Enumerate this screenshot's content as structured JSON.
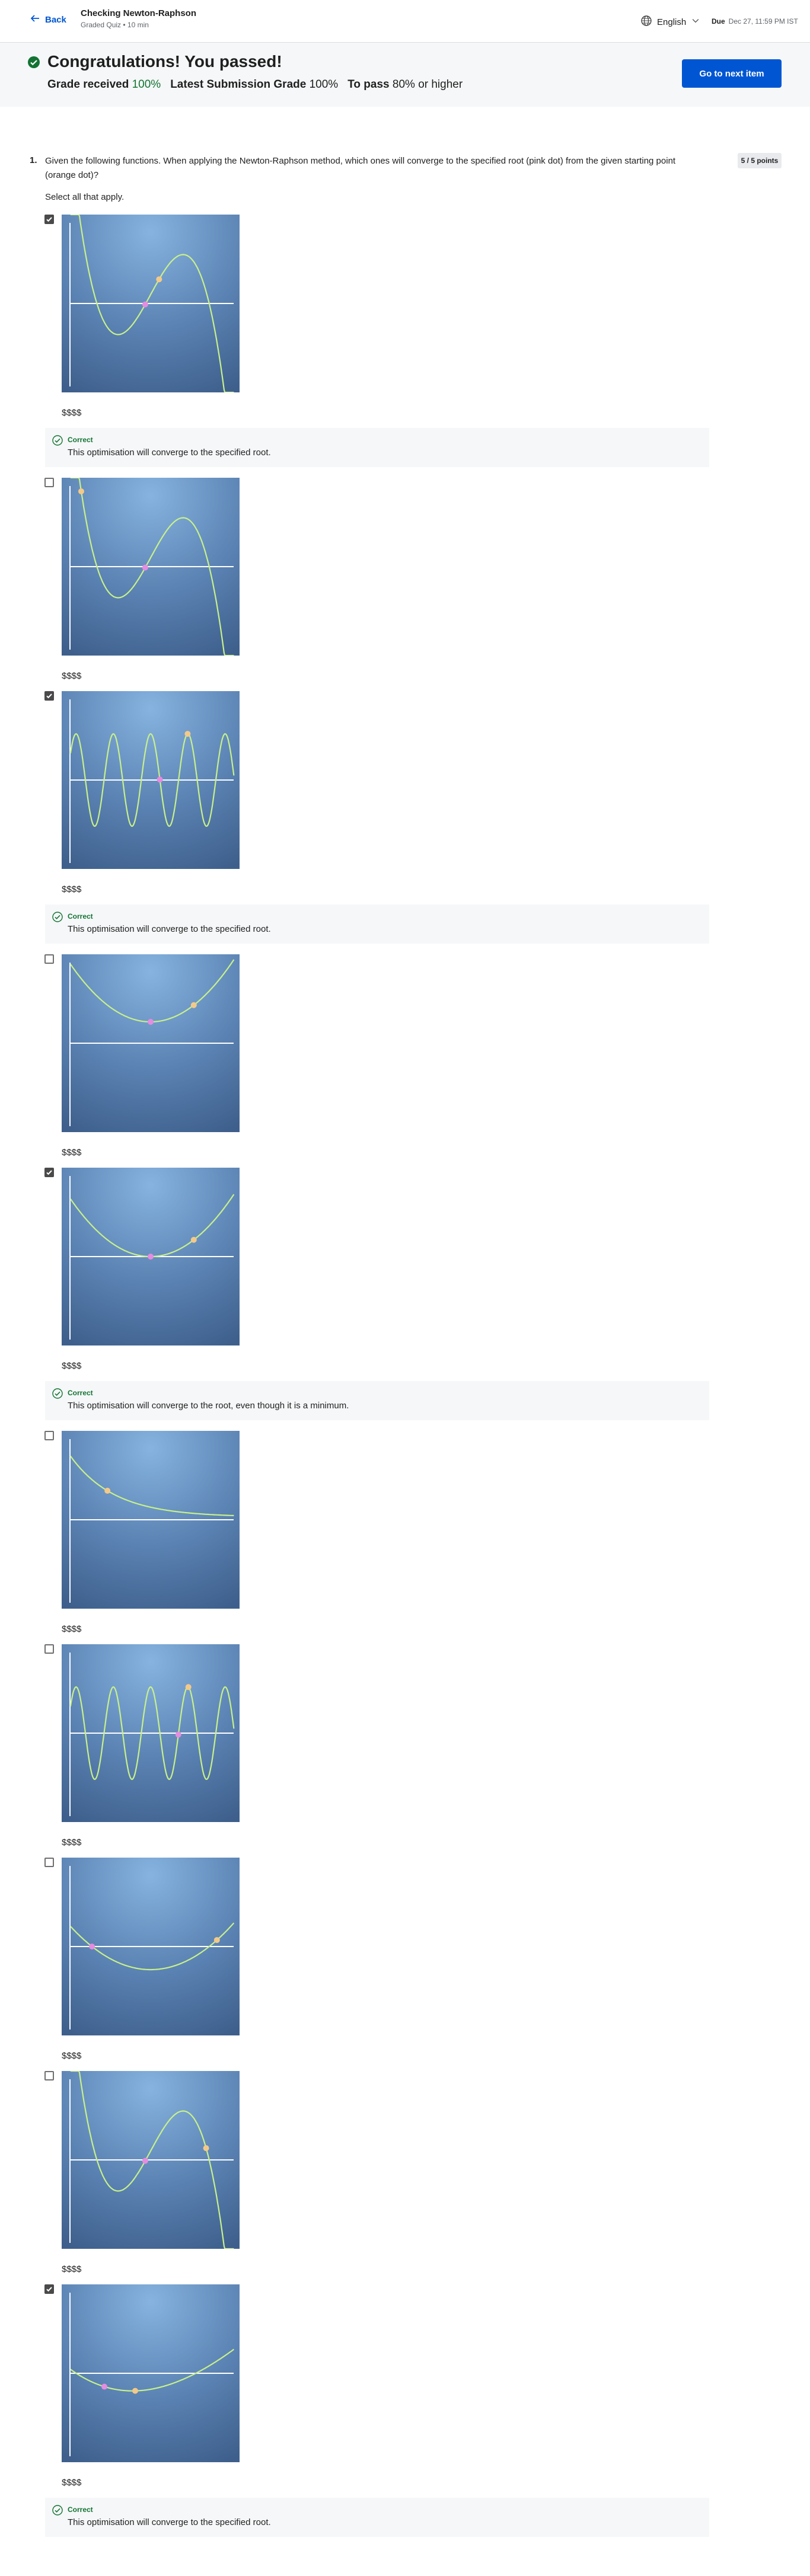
{
  "header": {
    "back_label": "Back",
    "title": "Checking Newton-Raphson",
    "subtitle": "Graded Quiz • 10 min",
    "language": "English",
    "due_label": "Due",
    "due_date": "Dec 27, 11:59 PM IST"
  },
  "banner": {
    "title": "Congratulations! You passed!",
    "grade_label": "Grade received",
    "grade_value": "100%",
    "latest_label": "Latest Submission Grade",
    "latest_value": "100%",
    "pass_label": "To pass",
    "pass_value": "80% or higher",
    "next_button": "Go to next item",
    "colors": {
      "accent": "#0056d2",
      "success": "#137333"
    }
  },
  "question": {
    "number": "1.",
    "text": "Given the following functions. When applying the Newton-Raphson method, which ones will converge to the specified root (pink dot) from the given starting point (orange dot)?",
    "points": "5 / 5 points",
    "instruction": "Select all that apply.",
    "options": [
      {
        "checked": true,
        "label": "$$$$",
        "feedback": {
          "status": "Correct",
          "message": "This optimisation will converge to the specified root."
        }
      },
      {
        "checked": false,
        "label": "$$$$",
        "feedback": null
      },
      {
        "checked": true,
        "label": "$$$$",
        "feedback": {
          "status": "Correct",
          "message": "This optimisation will converge to the specified root."
        }
      },
      {
        "checked": false,
        "label": "$$$$",
        "feedback": null
      },
      {
        "checked": true,
        "label": "$$$$",
        "feedback": {
          "status": "Correct",
          "message": "This optimisation will converge to the root, even though it is a minimum."
        }
      },
      {
        "checked": false,
        "label": "$$$$",
        "feedback": null
      },
      {
        "checked": false,
        "label": "$$$$",
        "feedback": null
      },
      {
        "checked": false,
        "label": "$$$$",
        "feedback": null
      },
      {
        "checked": false,
        "label": "$$$$",
        "feedback": null
      },
      {
        "checked": true,
        "label": "$$$$",
        "feedback": {
          "status": "Correct",
          "message": "This optimisation will converge to the specified root."
        }
      }
    ]
  }
}
